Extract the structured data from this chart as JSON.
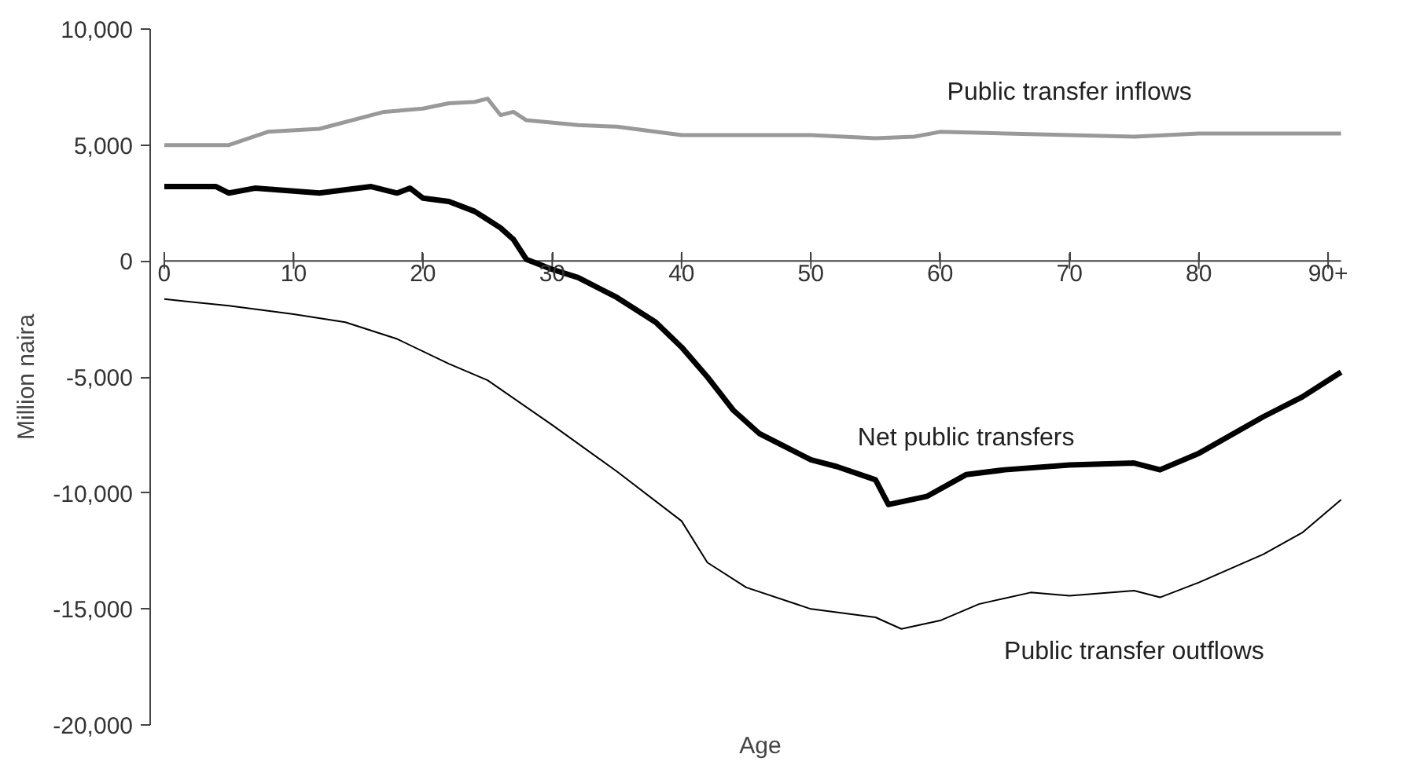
{
  "chart_data": {
    "type": "line",
    "xlabel": "Age",
    "ylabel": "Million naira",
    "xlim": [
      0,
      91
    ],
    "ylim": [
      -20000,
      10000
    ],
    "xticks": [
      0,
      10,
      20,
      30,
      40,
      50,
      60,
      70,
      80,
      {
        "value": 90,
        "label": "90+"
      }
    ],
    "yticks": [
      {
        "value": 10000,
        "label": "10,000"
      },
      {
        "value": 5000,
        "label": "5,000"
      },
      0,
      {
        "value": -5000,
        "label": "-5,000"
      },
      {
        "value": -10000,
        "label": "-10,000"
      },
      {
        "value": -15000,
        "label": "-15,000"
      },
      {
        "value": -20000,
        "label": "-20,000"
      }
    ],
    "grid": false,
    "legend": false,
    "series": [
      {
        "name": "Public transfer inflows",
        "color": "#999999",
        "x": [
          0,
          5,
          8,
          12,
          17,
          20,
          22,
          24,
          25,
          26,
          27,
          28,
          32,
          35,
          40,
          50,
          55,
          58,
          60,
          70,
          75,
          80,
          91
        ],
        "values": [
          5000,
          5000,
          5570,
          5700,
          6430,
          6570,
          6800,
          6860,
          7000,
          6290,
          6430,
          6070,
          5860,
          5790,
          5430,
          5430,
          5290,
          5360,
          5570,
          5430,
          5360,
          5500,
          5500
        ]
      },
      {
        "name": "Net public transfers",
        "color": "#000000",
        "x": [
          0,
          4,
          5,
          7,
          12,
          16,
          18,
          19,
          20,
          22,
          24,
          25,
          26,
          27,
          28,
          30,
          32,
          35,
          38,
          40,
          42,
          44,
          46,
          48,
          50,
          52,
          55,
          56,
          59,
          62,
          65,
          70,
          75,
          77,
          80,
          85,
          88,
          91
        ],
        "values": [
          3210,
          3210,
          2930,
          3140,
          2930,
          3210,
          2930,
          3140,
          2710,
          2570,
          2140,
          1790,
          1430,
          930,
          70,
          -360,
          -710,
          -1570,
          -2640,
          -3710,
          -5000,
          -6430,
          -7430,
          -8000,
          -8570,
          -8860,
          -9430,
          -10500,
          -10140,
          -9210,
          -9000,
          -8790,
          -8710,
          -9000,
          -8290,
          -6710,
          -5860,
          -4790
        ]
      },
      {
        "name": "Public transfer outflows",
        "color": "#000000",
        "x": [
          0,
          5,
          10,
          14,
          18,
          22,
          25,
          30,
          35,
          40,
          42,
          45,
          50,
          55,
          57,
          60,
          63,
          67,
          70,
          75,
          77,
          80,
          85,
          88,
          91
        ],
        "values": [
          -1640,
          -1930,
          -2290,
          -2640,
          -3360,
          -4430,
          -5140,
          -7070,
          -9070,
          -11210,
          -13000,
          -14070,
          -15000,
          -15360,
          -15860,
          -15500,
          -14790,
          -14290,
          -14430,
          -14210,
          -14500,
          -13860,
          -12640,
          -11710,
          -10290
        ]
      }
    ]
  }
}
